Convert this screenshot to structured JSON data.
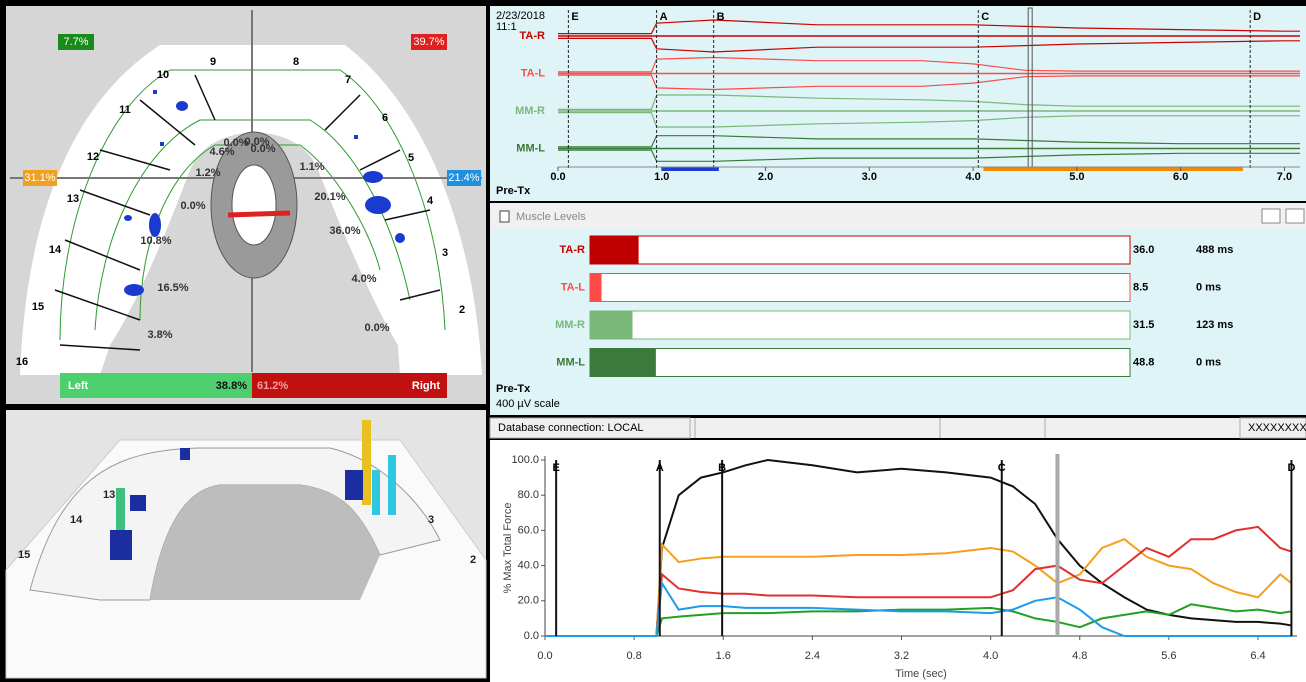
{
  "arch": {
    "corner_labels": {
      "top_left": "7.7%",
      "top_right": "39.7%",
      "left": "31.1%",
      "right": "21.4%"
    },
    "teeth": [
      "16",
      "15",
      "14",
      "13",
      "12",
      "11",
      "10",
      "9",
      "8",
      "7",
      "6",
      "5",
      "4",
      "3",
      "2"
    ],
    "zone_labels": [
      "0.0%",
      "4.6%",
      "0.0%",
      "0.0%",
      "1.1%",
      "1.2%",
      "20.1%",
      "0.0%",
      "36.0%",
      "10.8%",
      "4.0%",
      "16.5%",
      "0.0%",
      "3.8%"
    ],
    "balance": {
      "left_label": "Left",
      "left_value": "38.8%",
      "right_value": "61.2%",
      "right_label": "Right"
    }
  },
  "view3d": {
    "teeth": [
      "15",
      "14",
      "13",
      "3",
      "2"
    ]
  },
  "emg": {
    "date": "2/23/2018",
    "time": "11:1",
    "phase": "Pre-Tx",
    "xlim": [
      0,
      7.15
    ],
    "xticks": [
      {
        "value": 0,
        "label": "0.0"
      },
      {
        "value": 1,
        "label": "1.0"
      },
      {
        "value": 2,
        "label": "2.0"
      },
      {
        "value": 3,
        "label": "3.0"
      },
      {
        "value": 4,
        "label": "4.0"
      },
      {
        "value": 5,
        "label": "5.0"
      },
      {
        "value": 6,
        "label": "6.0"
      },
      {
        "value": 7,
        "label": "7.0"
      }
    ],
    "events": [
      {
        "label": "E",
        "x": 0.1
      },
      {
        "label": "A",
        "x": 0.95
      },
      {
        "label": "B",
        "x": 1.5
      },
      {
        "label": "C",
        "x": 4.05
      },
      {
        "label": "D",
        "x": 6.67
      }
    ],
    "cursor_x": 4.55,
    "ranges": [
      {
        "color": "#1a3fd0",
        "x": [
          1.0,
          1.55
        ]
      },
      {
        "color": "#f08a00",
        "x": [
          4.1,
          6.6
        ]
      }
    ],
    "envelope_x": [
      0,
      0.9,
      0.95,
      1.5,
      2.5,
      3.5,
      4.0,
      4.5,
      5.0,
      6.0,
      7.0,
      7.15
    ],
    "channels": [
      {
        "name": "TA-R",
        "color": "#cc0000",
        "envelope": [
          0.15,
          0.15,
          0.8,
          1,
          0.7,
          0.7,
          0.7,
          0.6,
          0.5,
          0.4,
          0.3,
          0.3
        ]
      },
      {
        "name": "TA-L",
        "color": "#ff4a4a",
        "envelope": [
          0.1,
          0.1,
          0.9,
          1,
          0.8,
          0.8,
          0.6,
          0.2,
          0.15,
          0.15,
          0.15,
          0.15
        ]
      },
      {
        "name": "MM-R",
        "color": "#7ab87a",
        "envelope": [
          0.1,
          0.1,
          1,
          1,
          0.8,
          0.7,
          0.6,
          0.4,
          0.3,
          0.3,
          0.3,
          0.3
        ]
      },
      {
        "name": "MM-L",
        "color": "#3a7a3a",
        "envelope": [
          0.1,
          0.1,
          0.8,
          0.8,
          0.6,
          0.6,
          0.6,
          0.5,
          0.4,
          0.3,
          0.3,
          0.3
        ]
      }
    ]
  },
  "muscle_levels": {
    "title": "Muscle Levels",
    "phase": "Pre-Tx",
    "scale_label": "400 µV scale",
    "scale_max": 400,
    "rows": [
      {
        "name": "TA-R",
        "color": "#c00000",
        "value": 36,
        "value_label": "36.0",
        "time": "488 ms"
      },
      {
        "name": "TA-L",
        "color": "#ff4a4a",
        "value": 8.5,
        "time": "0 ms"
      },
      {
        "name": "MM-R",
        "color": "#7ab87a",
        "value": 31.5,
        "time": "123 ms"
      },
      {
        "name": "MM-L",
        "color": "#3a7a3a",
        "value": 48.8,
        "time": "0 ms"
      }
    ]
  },
  "status_bar": {
    "cells": [
      "Database connection: LOCAL",
      "XXXXXXXX"
    ]
  },
  "chart_data": {
    "type": "line",
    "ylabel": "% Max Total Force",
    "xlabel": "Time (sec)",
    "xlim": [
      0,
      6.75
    ],
    "ylim": [
      0,
      100
    ],
    "xticks": [
      {
        "value": 0,
        "label": "0.0"
      },
      0.8,
      1.6,
      2.4,
      3.2,
      {
        "value": 4,
        "label": "4.0"
      },
      4.8,
      5.6,
      6.4
    ],
    "yticks": [
      {
        "value": 0,
        "label": "0.0"
      },
      {
        "value": 20,
        "label": "20.0"
      },
      {
        "value": 40,
        "label": "40.0"
      },
      {
        "value": 60,
        "label": "60.0"
      },
      {
        "value": 80,
        "label": "80.0"
      },
      {
        "value": 100,
        "label": "100.0"
      }
    ],
    "events": [
      {
        "label": "E",
        "x": 0.1
      },
      {
        "label": "A",
        "x": 1.03
      },
      {
        "label": "B",
        "x": 1.59
      },
      {
        "label": "C",
        "x": 4.1
      },
      {
        "label": "D",
        "x": 6.7
      }
    ],
    "cursor_x": 4.6,
    "x": [
      0,
      0.95,
      1.0,
      1.05,
      1.2,
      1.4,
      1.6,
      1.8,
      2.0,
      2.4,
      2.8,
      3.2,
      3.6,
      4.0,
      4.2,
      4.4,
      4.6,
      4.8,
      5.0,
      5.2,
      5.4,
      5.6,
      5.8,
      6.0,
      6.2,
      6.4,
      6.6,
      6.7
    ],
    "series": [
      {
        "color": "#111111",
        "values": [
          0,
          0,
          0,
          50,
          80,
          90,
          93,
          97,
          100,
          97,
          93,
          95,
          93,
          90,
          85,
          75,
          55,
          40,
          30,
          22,
          15,
          12,
          10,
          9,
          8,
          8,
          7,
          6
        ]
      },
      {
        "color": "#f5a01a",
        "values": [
          0,
          0,
          0,
          52,
          42,
          44,
          45,
          45,
          45,
          45,
          46,
          46,
          47,
          50,
          48,
          40,
          30,
          35,
          50,
          55,
          45,
          40,
          38,
          30,
          25,
          22,
          35,
          30
        ]
      },
      {
        "color": "#e03030",
        "values": [
          0,
          0,
          0,
          35,
          27,
          25,
          24,
          24,
          23,
          23,
          22,
          22,
          22,
          22,
          26,
          38,
          40,
          32,
          30,
          40,
          50,
          45,
          55,
          55,
          60,
          62,
          50,
          48
        ]
      },
      {
        "color": "#22a022",
        "values": [
          0,
          0,
          0,
          10,
          11,
          12,
          13,
          13,
          13,
          14,
          14,
          15,
          15,
          16,
          14,
          10,
          8,
          5,
          10,
          12,
          14,
          12,
          18,
          16,
          14,
          15,
          13,
          14
        ]
      },
      {
        "color": "#1e9bea",
        "values": [
          0,
          0,
          0,
          30,
          15,
          17,
          17,
          16,
          16,
          16,
          15,
          14,
          14,
          13,
          15,
          20,
          22,
          15,
          5,
          0,
          0,
          0,
          0,
          0,
          0,
          0,
          0,
          0
        ]
      }
    ]
  }
}
